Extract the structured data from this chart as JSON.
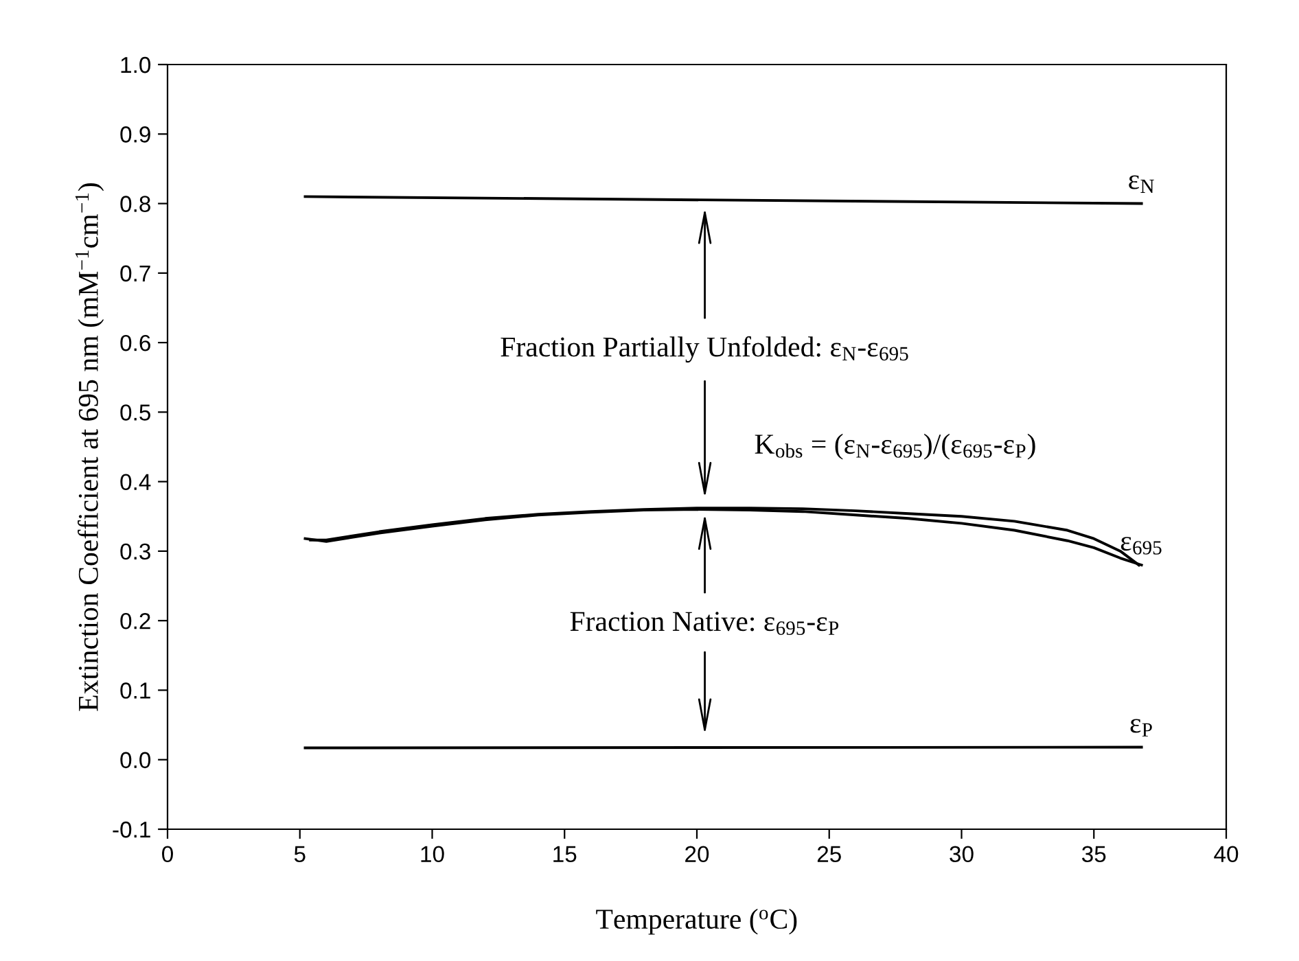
{
  "chart_data": {
    "type": "line",
    "xlabel": "Temperature ($^{o}$C)",
    "ylabel": "Extinction Coefficient at 695 nm (mM$^{−1}$cm$^{−1}$)",
    "xlim": [
      0,
      40
    ],
    "xticks": [
      0,
      5,
      10,
      15,
      20,
      25,
      30,
      35,
      40
    ],
    "ylim": [
      -0.1,
      1.0
    ],
    "yticks": [
      {
        "value": -0.1,
        "label": "-0.1"
      },
      {
        "value": 0.0,
        "label": "0.0"
      },
      {
        "value": 0.1,
        "label": "0.1"
      },
      {
        "value": 0.2,
        "label": "0.2"
      },
      {
        "value": 0.3,
        "label": "0.3"
      },
      {
        "value": 0.4,
        "label": "0.4"
      },
      {
        "value": 0.5,
        "label": "0.5"
      },
      {
        "value": 0.6,
        "label": "0.6"
      },
      {
        "value": 0.7,
        "label": "0.7"
      },
      {
        "value": 0.8,
        "label": "0.8"
      },
      {
        "value": 0.9,
        "label": "0.9"
      },
      {
        "value": 1.0,
        "label": "1.0"
      }
    ],
    "grid": false,
    "legend": false,
    "marker": "none",
    "line_style": "solid",
    "series": [
      {
        "name": "ε$_{N}$",
        "color": "#000000",
        "x": [
          5.2,
          36.8
        ],
        "values": [
          0.81,
          0.8
        ]
      },
      {
        "name": "ε$_{695}$",
        "color": "#000000",
        "x": [
          5.2,
          6,
          8,
          10,
          12,
          14,
          16,
          18,
          20,
          22,
          24,
          26,
          28,
          30,
          32,
          34,
          35,
          36,
          36.8
        ],
        "values": [
          0.318,
          0.314,
          0.326,
          0.336,
          0.345,
          0.352,
          0.356,
          0.359,
          0.36,
          0.359,
          0.357,
          0.352,
          0.347,
          0.34,
          0.33,
          0.315,
          0.305,
          0.29,
          0.28
        ]
      },
      {
        "color": "#000000",
        "x": [
          5.4,
          6,
          8,
          10,
          12,
          14,
          16,
          18,
          20,
          22,
          24,
          26,
          28,
          30,
          32,
          34,
          35,
          36,
          36.7
        ],
        "values": [
          0.316,
          0.316,
          0.328,
          0.338,
          0.347,
          0.353,
          0.357,
          0.36,
          0.362,
          0.362,
          0.361,
          0.358,
          0.354,
          0.35,
          0.343,
          0.33,
          0.318,
          0.3,
          0.28
        ]
      },
      {
        "name": "ε$_{P}$",
        "color": "#000000",
        "x": [
          5.2,
          36.8
        ],
        "values": [
          0.017,
          0.018
        ]
      }
    ],
    "annotations": [
      "Fraction Partially Unfolded: ε$_{N}$-ε$_{695}$",
      "K$_{obs}$ = (ε$_{N}$-ε$_{695}$)/(ε$_{695}$-ε$_{P}$)",
      "Fraction Native: ε$_{695}$-ε$_{P}$"
    ]
  }
}
